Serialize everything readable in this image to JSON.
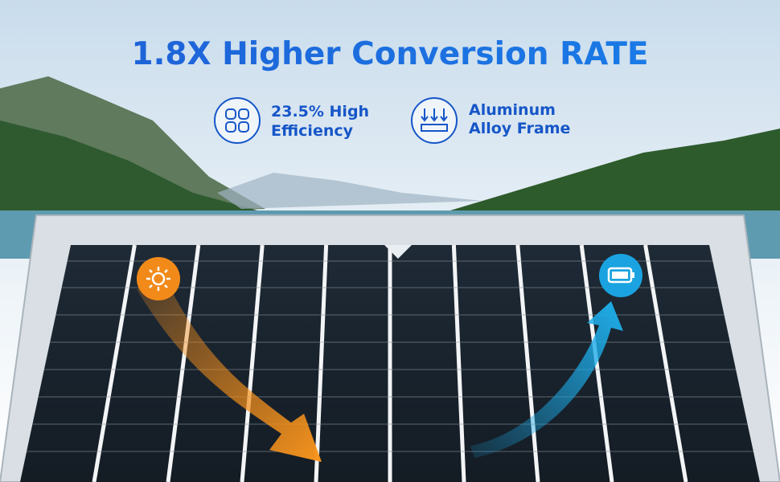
{
  "header": {
    "title": "1.8X Higher Conversion RATE"
  },
  "features": [
    {
      "lines": [
        "23.5% High",
        "Efficiency"
      ]
    },
    {
      "lines": [
        "Aluminum",
        "Alloy Frame"
      ]
    }
  ]
}
